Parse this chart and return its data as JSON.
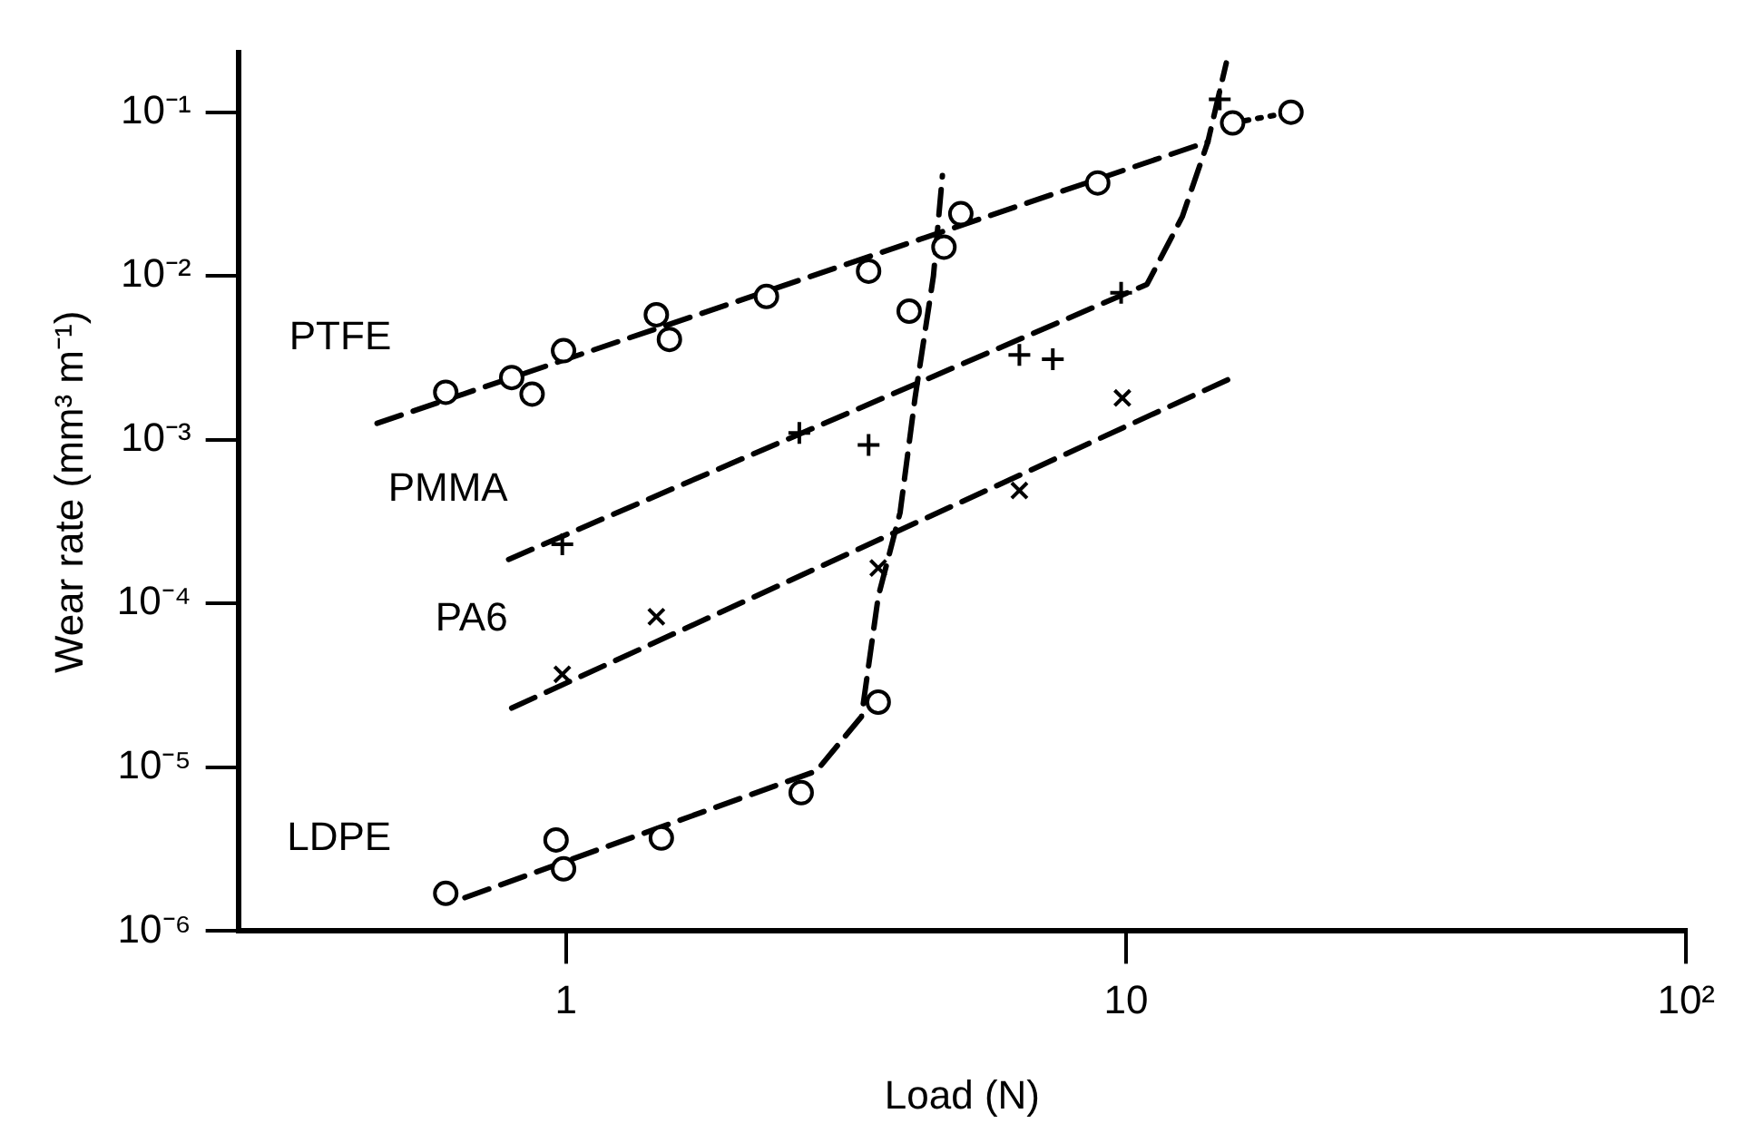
{
  "chart_data": {
    "type": "scatter",
    "xlabel": "Load (N)",
    "ylabel": "Wear rate (mm³ m⁻¹)",
    "log": "xy",
    "grid": false,
    "legend": false,
    "xlim": [
      0.26,
      100
    ],
    "ylim": [
      1e-06,
      0.23
    ],
    "xticks": [
      1,
      10,
      {
        "value": 100,
        "label": "10²"
      }
    ],
    "yticks": [
      {
        "value": 1e-06,
        "label": "10⁻⁶"
      },
      {
        "value": 1e-05,
        "label": "10⁻⁵"
      },
      {
        "value": 0.0001,
        "label": "10⁻⁴"
      },
      {
        "value": 0.001,
        "label": "10⁻³"
      },
      {
        "value": 0.01,
        "label": "10⁻²"
      },
      {
        "value": 0.1,
        "label": "10⁻¹"
      }
    ],
    "series": [
      {
        "name": "PTFE",
        "marker": "circle",
        "color": "#000000",
        "x": [
          0.61,
          0.8,
          0.87,
          0.99,
          1.45,
          1.53,
          2.28,
          3.47,
          5.07,
          8.9
        ],
        "values": [
          0.00195,
          0.0024,
          0.0019,
          0.0035,
          0.0058,
          0.0041,
          0.0075,
          0.0107,
          0.024,
          0.037
        ]
      },
      {
        "name": "PMMA",
        "marker": "plus",
        "color": "#000000",
        "x": [
          0.985,
          2.61,
          3.47,
          6.45,
          7.4,
          9.8,
          14.7
        ],
        "values": [
          0.00023,
          0.0011,
          0.00093,
          0.0033,
          0.0031,
          0.0079,
          0.12
        ]
      },
      {
        "name": "PA6",
        "marker": "cross",
        "color": "#000000",
        "x": [
          0.985,
          1.45,
          3.61,
          6.45,
          9.85
        ],
        "values": [
          3.7e-05,
          8.3e-05,
          0.000165,
          0.00049,
          0.0018
        ]
      },
      {
        "name": "LDPE",
        "marker": "circle",
        "color": "#000000",
        "x": [
          0.61,
          0.96,
          0.99,
          1.48,
          2.63,
          3.61,
          4.1,
          4.73,
          15.5,
          19.7
        ],
        "values": [
          1.7e-06,
          3.6e-06,
          2.4e-06,
          3.7e-06,
          7e-06,
          2.5e-05,
          0.0061,
          0.015,
          0.086,
          0.1
        ]
      },
      {
        "type": "line",
        "line_style": "dashed",
        "color": "#000000",
        "x": [
          0.46,
          14
        ],
        "values": [
          0.00126,
          0.066
        ]
      },
      {
        "type": "line",
        "line_style": "dashed",
        "color": "#000000",
        "x": [
          0.79,
          10.9,
          12.6,
          14,
          15.1
        ],
        "values": [
          0.000186,
          0.0089,
          0.023,
          0.066,
          0.2
        ]
      },
      {
        "type": "line",
        "line_style": "dashed",
        "color": "#000000",
        "x": [
          0.8,
          15.5
        ],
        "values": [
          2.3e-05,
          0.0024
        ]
      },
      {
        "type": "line",
        "line_style": "dashed",
        "color": "#000000",
        "x": [
          0.66,
          2.8,
          3.37,
          3.61,
          3.95,
          4.2,
          4.53,
          4.7
        ],
        "values": [
          1.6e-06,
          9.5e-06,
          2.04e-05,
          0.00011,
          0.00036,
          0.0018,
          0.01,
          0.041
        ]
      },
      {
        "type": "line",
        "line_style": "dotted",
        "color": "#000000",
        "x": [
          15.5,
          19.7
        ],
        "values": [
          0.086,
          0.1
        ]
      }
    ]
  }
}
